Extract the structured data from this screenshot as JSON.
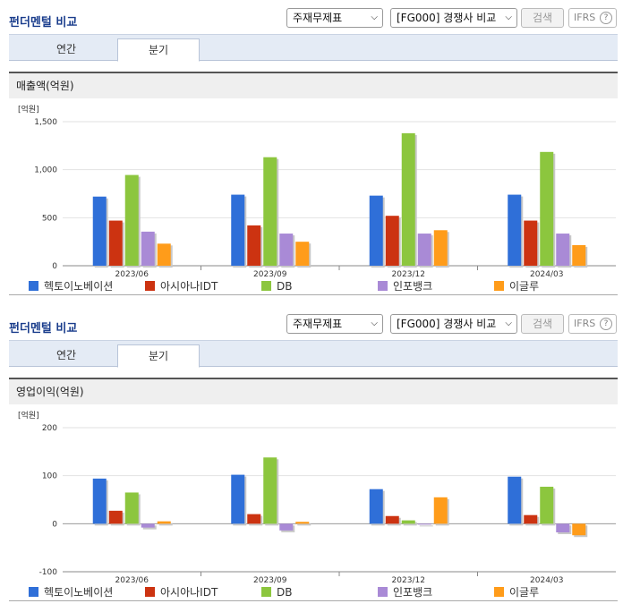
{
  "panels": [
    {
      "title": "펀더멘털 비교",
      "select_report": "주재무제표",
      "select_compare": "[FG000] 경쟁사 비교",
      "search_label": "검색",
      "ifrs_label": "IFRS",
      "ifrs_help": "?",
      "tabs": [
        {
          "label": "연간",
          "active": false
        },
        {
          "label": "분기",
          "active": true
        }
      ],
      "section_title": "매출액(억원)"
    },
    {
      "title": "펀더멘털 비교",
      "select_report": "주재무제표",
      "select_compare": "[FG000] 경쟁사 비교",
      "search_label": "검색",
      "ifrs_label": "IFRS",
      "ifrs_help": "?",
      "tabs": [
        {
          "label": "연간",
          "active": false
        },
        {
          "label": "분기",
          "active": true
        }
      ],
      "section_title": "영업이익(억원)"
    }
  ],
  "chart_data": [
    {
      "type": "bar",
      "unit_label": "[억원]",
      "categories": [
        "2023/06",
        "2023/09",
        "2023/12",
        "2024/03"
      ],
      "ylim": [
        0,
        1500
      ],
      "yticks": [
        0,
        500,
        1000,
        1500
      ],
      "ytick_labels": [
        "0",
        "500",
        "1,000",
        "1,500"
      ],
      "grid": true,
      "legend_position": "bottom",
      "series": [
        {
          "name": "헥토이노베이션",
          "color": "#2f6fd8",
          "values": [
            720,
            740,
            730,
            740
          ]
        },
        {
          "name": "아시아나IDT",
          "color": "#cc3311",
          "values": [
            470,
            420,
            520,
            470
          ]
        },
        {
          "name": "DB",
          "color": "#8cc63e",
          "values": [
            945,
            1130,
            1380,
            1185
          ]
        },
        {
          "name": "인포뱅크",
          "color": "#a98ad6",
          "values": [
            355,
            335,
            335,
            335
          ]
        },
        {
          "name": "이글루",
          "color": "#ff9c1a",
          "values": [
            230,
            250,
            370,
            215
          ]
        }
      ]
    },
    {
      "type": "bar",
      "unit_label": "[억원]",
      "categories": [
        "2023/06",
        "2023/09",
        "2023/12",
        "2024/03"
      ],
      "ylim": [
        -100,
        200
      ],
      "yticks": [
        -100,
        0,
        100,
        200
      ],
      "ytick_labels": [
        "-100",
        "0",
        "100",
        "200"
      ],
      "grid": true,
      "legend_position": "bottom",
      "series": [
        {
          "name": "헥토이노베이션",
          "color": "#2f6fd8",
          "values": [
            94,
            102,
            72,
            98
          ]
        },
        {
          "name": "아시아나IDT",
          "color": "#cc3311",
          "values": [
            27,
            20,
            16,
            18
          ]
        },
        {
          "name": "DB",
          "color": "#8cc63e",
          "values": [
            65,
            138,
            7,
            77
          ]
        },
        {
          "name": "인포뱅크",
          "color": "#a98ad6",
          "values": [
            -8,
            -14,
            0,
            -18
          ]
        },
        {
          "name": "이글루",
          "color": "#ff9c1a",
          "values": [
            5,
            4,
            55,
            -24
          ]
        }
      ]
    }
  ]
}
